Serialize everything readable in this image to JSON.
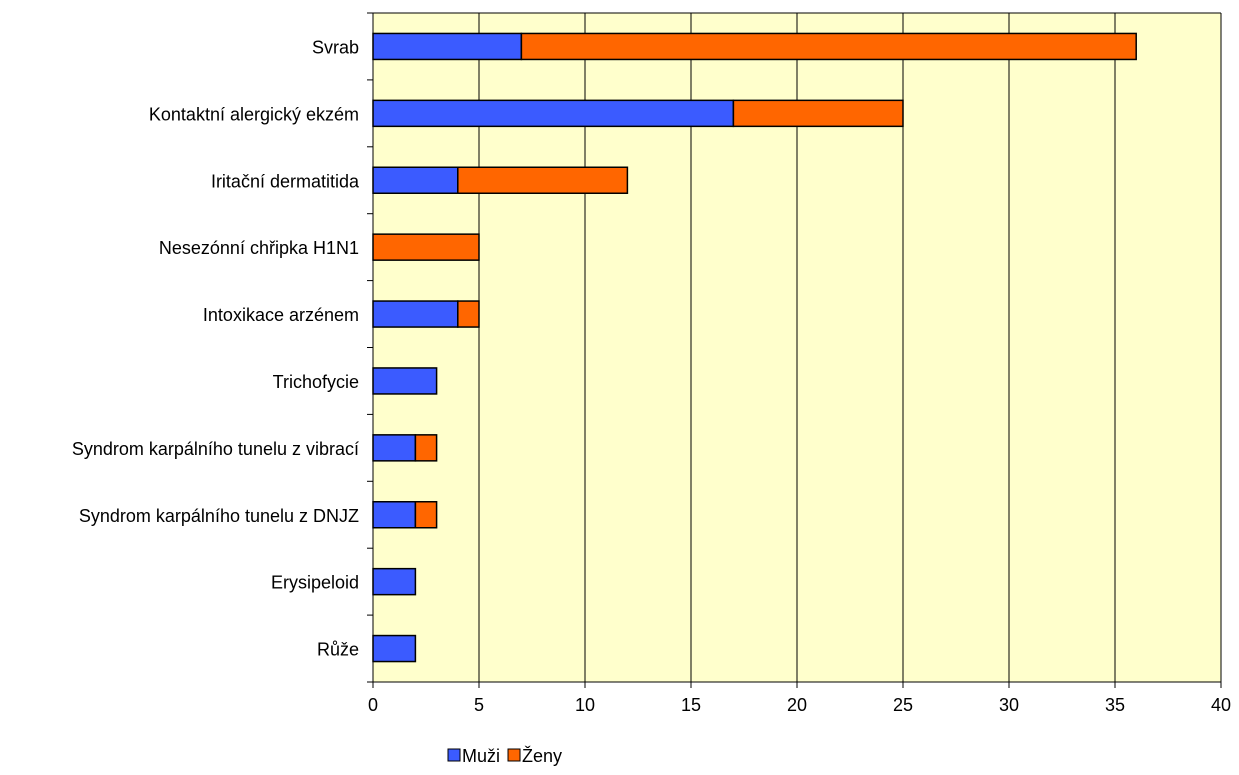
{
  "chart_data": {
    "type": "bar",
    "orientation": "horizontal",
    "stacked": true,
    "categories": [
      "Svrab",
      "Kontaktní alergický ekzém",
      "Iritační dermatitida",
      "Nesezónní chřipka H1N1",
      "Intoxikace arzénem",
      "Trichofycie",
      "Syndrom karpálního tunelu z vibrací",
      "Syndrom karpálního tunelu z DNJZ",
      "Erysipeloid",
      "Růže"
    ],
    "series": [
      {
        "name": "Muži",
        "color": "#3B5BFF",
        "values": [
          7,
          17,
          4,
          0,
          4,
          3,
          2,
          2,
          2,
          2
        ]
      },
      {
        "name": "Ženy",
        "color": "#FF6600",
        "values": [
          29,
          8,
          8,
          5,
          1,
          0,
          1,
          1,
          0,
          0
        ]
      }
    ],
    "x_ticks": [
      "0",
      "5",
      "10",
      "15",
      "20",
      "25",
      "30",
      "35",
      "40"
    ],
    "xlim": [
      0,
      40
    ],
    "grid": "vertical",
    "plot_background": "#FFFFCC",
    "legend_position": "bottom",
    "title": "",
    "xlabel": "",
    "ylabel": ""
  }
}
